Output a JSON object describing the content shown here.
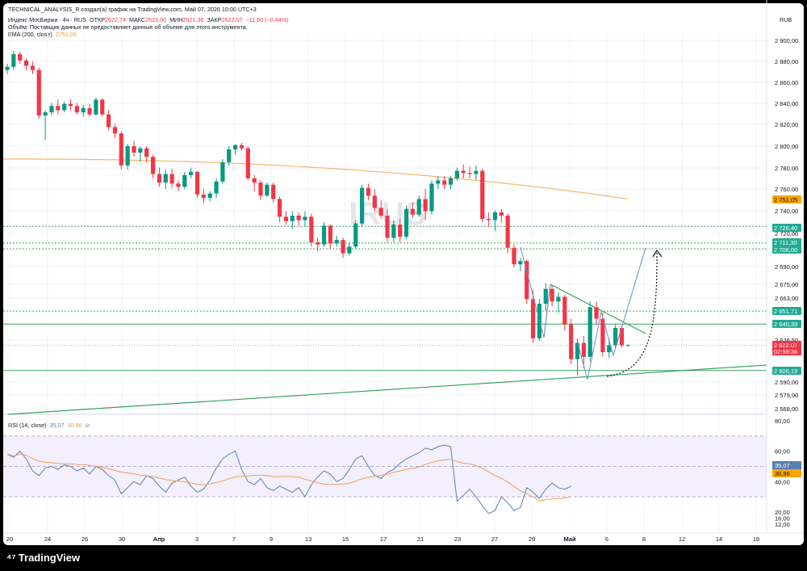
{
  "header": {
    "attribution": "TECHNICAL_ANALYSIS_R создал(а) график на TradingView.com, Май 07, 2026 10:00 UTC+3",
    "symbol": "Индекс МосБиржи · 4ч · RUS",
    "open_label": "ОТКР",
    "open": "2622,74",
    "high_label": "МАКС",
    "high": "2623,00",
    "low_label": "МИН",
    "low": "2621,36",
    "close_label": "ЗАКР",
    "close": "2622,07",
    "change": "−11,60 (−0,44%)",
    "volume_note": "Объём: Поставщик данных не предоставляет данные об объеме для этого инструмента.",
    "ema_label": "EMA (200, close)",
    "ema_value": "2751,05",
    "currency": "RUB"
  },
  "watermark": "IRUS",
  "rsi": {
    "label": "RSI (14, close)",
    "rsi_value": "35,07",
    "ma_value": "30,96",
    "upper": 70,
    "lower": 30,
    "mid": 50,
    "ticks": [
      "80,00",
      "60,00",
      "40,00",
      "20,00",
      "16,00",
      "12,00"
    ]
  },
  "colors": {
    "up": "#089981",
    "down": "#f23645",
    "ema": "#f5b66d",
    "rsi": "#5b7fb3",
    "rsi_ma": "#f0a050",
    "trend": "#3aa15a",
    "projection": "#6b8fc9"
  },
  "price_ticks": [
    "2 900,00",
    "2 880,00",
    "2 860,00",
    "2 840,00",
    "2 820,00",
    "2 800,00",
    "2 780,00",
    "2 760,00",
    "2 740,00",
    "2 720,00",
    "2 690,00",
    "2 675,00",
    "2 663,00",
    "2 626,50",
    "2 590,00",
    "2 579,00",
    "2 568,00"
  ],
  "price_badges": [
    {
      "text": "2 751,05",
      "kind": "ema"
    },
    {
      "text": "2 726,40",
      "kind": "green"
    },
    {
      "text": "2 711,30",
      "kind": "green"
    },
    {
      "text": "2 706,00",
      "kind": "green"
    },
    {
      "text": "2 651,71",
      "kind": "green"
    },
    {
      "text": "2 640,39",
      "kind": "green"
    },
    {
      "text": "2 622,07",
      "kind": "red"
    },
    {
      "text": "02:59:36",
      "kind": "red"
    },
    {
      "text": "2 600,19",
      "kind": "green"
    }
  ],
  "date_ticks": [
    "20",
    "24",
    "26",
    "30",
    "Апр",
    "3",
    "7",
    "9",
    "13",
    "15",
    "17",
    "21",
    "23",
    "27",
    "29",
    "Май",
    "6",
    "8",
    "12",
    "14",
    "18"
  ],
  "footer": {
    "brand": "TradingView"
  },
  "chart_data": {
    "type": "candlestick",
    "title": "Индекс МосБиржи · 4ч · RUS",
    "currency": "RUB",
    "y_range": [
      2560,
      2910
    ],
    "ohlc": [
      [
        2872,
        2878,
        2868,
        2875
      ],
      [
        2875,
        2890,
        2872,
        2887
      ],
      [
        2887,
        2889,
        2878,
        2881
      ],
      [
        2881,
        2883,
        2872,
        2876
      ],
      [
        2876,
        2880,
        2868,
        2872
      ],
      [
        2872,
        2874,
        2826,
        2829
      ],
      [
        2829,
        2834,
        2806,
        2832
      ],
      [
        2832,
        2841,
        2829,
        2838
      ],
      [
        2838,
        2844,
        2830,
        2834
      ],
      [
        2834,
        2842,
        2832,
        2840
      ],
      [
        2840,
        2844,
        2834,
        2838
      ],
      [
        2838,
        2841,
        2830,
        2832
      ],
      [
        2832,
        2839,
        2828,
        2836
      ],
      [
        2836,
        2840,
        2828,
        2830
      ],
      [
        2830,
        2846,
        2829,
        2844
      ],
      [
        2844,
        2845,
        2828,
        2830
      ],
      [
        2830,
        2834,
        2815,
        2818
      ],
      [
        2818,
        2821,
        2808,
        2812
      ],
      [
        2812,
        2814,
        2778,
        2782
      ],
      [
        2782,
        2802,
        2778,
        2800
      ],
      [
        2800,
        2805,
        2790,
        2794
      ],
      [
        2794,
        2800,
        2785,
        2798
      ],
      [
        2798,
        2800,
        2785,
        2790
      ],
      [
        2790,
        2792,
        2770,
        2774
      ],
      [
        2774,
        2780,
        2762,
        2766
      ],
      [
        2766,
        2778,
        2760,
        2774
      ],
      [
        2774,
        2779,
        2761,
        2765
      ],
      [
        2765,
        2768,
        2758,
        2762
      ],
      [
        2762,
        2776,
        2760,
        2773
      ],
      [
        2773,
        2780,
        2770,
        2776
      ],
      [
        2776,
        2777,
        2752,
        2755
      ],
      [
        2755,
        2760,
        2747,
        2752
      ],
      [
        2752,
        2758,
        2749,
        2756
      ],
      [
        2756,
        2770,
        2752,
        2767
      ],
      [
        2767,
        2788,
        2765,
        2785
      ],
      [
        2785,
        2800,
        2782,
        2797
      ],
      [
        2797,
        2802,
        2792,
        2801
      ],
      [
        2801,
        2803,
        2796,
        2798
      ],
      [
        2798,
        2800,
        2768,
        2770
      ],
      [
        2770,
        2773,
        2758,
        2766
      ],
      [
        2766,
        2768,
        2750,
        2754
      ],
      [
        2754,
        2766,
        2753,
        2764
      ],
      [
        2764,
        2766,
        2748,
        2751
      ],
      [
        2751,
        2753,
        2730,
        2735
      ],
      [
        2735,
        2740,
        2728,
        2731
      ],
      [
        2731,
        2740,
        2724,
        2736
      ],
      [
        2736,
        2739,
        2727,
        2732
      ],
      [
        2732,
        2740,
        2726,
        2735
      ],
      [
        2735,
        2738,
        2708,
        2712
      ],
      [
        2712,
        2716,
        2704,
        2710
      ],
      [
        2710,
        2730,
        2708,
        2727
      ],
      [
        2727,
        2728,
        2706,
        2711
      ],
      [
        2711,
        2718,
        2708,
        2714
      ],
      [
        2714,
        2716,
        2698,
        2702
      ],
      [
        2702,
        2712,
        2700,
        2708
      ],
      [
        2708,
        2732,
        2706,
        2729
      ],
      [
        2729,
        2764,
        2726,
        2761
      ],
      [
        2761,
        2765,
        2750,
        2754
      ],
      [
        2754,
        2760,
        2740,
        2743
      ],
      [
        2743,
        2750,
        2733,
        2736
      ],
      [
        2736,
        2742,
        2712,
        2716
      ],
      [
        2716,
        2732,
        2712,
        2728
      ],
      [
        2728,
        2733,
        2712,
        2717
      ],
      [
        2717,
        2745,
        2715,
        2742
      ],
      [
        2742,
        2748,
        2734,
        2737
      ],
      [
        2737,
        2754,
        2735,
        2751
      ],
      [
        2751,
        2760,
        2732,
        2740
      ],
      [
        2740,
        2768,
        2737,
        2765
      ],
      [
        2765,
        2772,
        2760,
        2768
      ],
      [
        2768,
        2772,
        2760,
        2764
      ],
      [
        2764,
        2772,
        2760,
        2770
      ],
      [
        2770,
        2780,
        2768,
        2777
      ],
      [
        2777,
        2783,
        2770,
        2775
      ],
      [
        2775,
        2781,
        2770,
        2774
      ],
      [
        2774,
        2782,
        2768,
        2777
      ],
      [
        2777,
        2779,
        2730,
        2733
      ],
      [
        2733,
        2739,
        2726,
        2732
      ],
      [
        2732,
        2741,
        2722,
        2739
      ],
      [
        2739,
        2742,
        2730,
        2736
      ],
      [
        2736,
        2738,
        2702,
        2707
      ],
      [
        2707,
        2710,
        2689,
        2692
      ],
      [
        2692,
        2698,
        2686,
        2695
      ],
      [
        2695,
        2696,
        2658,
        2662
      ],
      [
        2662,
        2670,
        2624,
        2628
      ],
      [
        2628,
        2662,
        2626,
        2658
      ],
      [
        2658,
        2676,
        2652,
        2671
      ],
      [
        2671,
        2674,
        2656,
        2660
      ],
      [
        2660,
        2668,
        2650,
        2664
      ],
      [
        2664,
        2666,
        2635,
        2640
      ],
      [
        2640,
        2645,
        2606,
        2610
      ],
      [
        2610,
        2628,
        2596,
        2624
      ],
      [
        2624,
        2630,
        2602,
        2612
      ],
      [
        2612,
        2660,
        2608,
        2655
      ],
      [
        2655,
        2660,
        2640,
        2645
      ],
      [
        2645,
        2650,
        2612,
        2616
      ],
      [
        2616,
        2628,
        2611,
        2622
      ],
      [
        2622,
        2640,
        2619,
        2637
      ],
      [
        2637,
        2639,
        2620,
        2622
      ],
      [
        2622,
        2623,
        2621,
        2622
      ]
    ],
    "ema200_start": 2788,
    "ema200_end": 2751.05,
    "horizontal_levels": [
      2726.4,
      2711.3,
      2706.0,
      2651.71,
      2640.39,
      2600.19
    ],
    "current_price": 2622.07,
    "rsi_values": [
      58,
      56,
      60,
      55,
      47,
      44,
      49,
      50,
      48,
      51,
      50,
      47,
      49,
      45,
      50,
      48,
      44,
      41,
      32,
      36,
      40,
      38,
      44,
      42,
      37,
      33,
      39,
      41,
      43,
      37,
      33,
      35,
      41,
      49,
      55,
      58,
      60,
      48,
      40,
      38,
      42,
      36,
      34,
      37,
      35,
      33,
      36,
      30,
      38,
      43,
      47,
      45,
      40,
      42,
      48,
      55,
      57,
      50,
      44,
      42,
      46,
      48,
      52,
      55,
      57,
      59,
      62,
      61,
      63,
      64,
      63,
      27,
      31,
      35,
      30,
      24,
      19,
      21,
      30,
      26,
      21,
      23,
      36,
      33,
      29,
      35,
      39,
      36,
      35,
      37
    ]
  }
}
